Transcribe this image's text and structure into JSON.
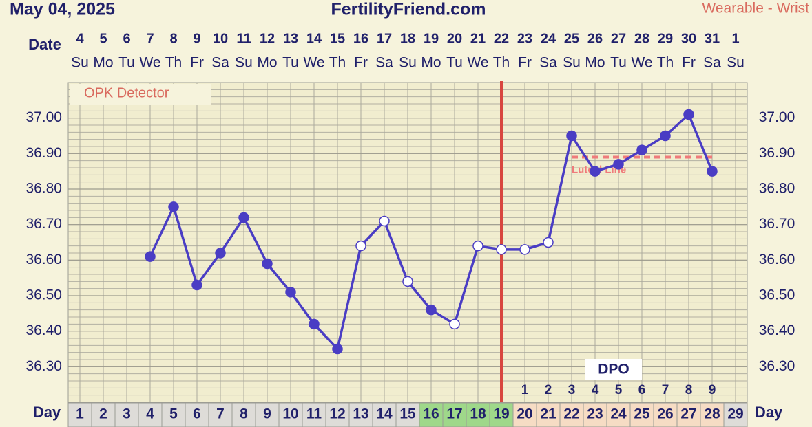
{
  "header": {
    "date": "May 04, 2025",
    "site": "FertilityFriend.com",
    "source": "Wearable - Wrist"
  },
  "chart_data": {
    "type": "line",
    "date_label": "Date",
    "dates": [
      4,
      5,
      6,
      7,
      8,
      9,
      10,
      11,
      12,
      13,
      14,
      15,
      16,
      17,
      18,
      19,
      20,
      21,
      22,
      23,
      24,
      25,
      26,
      27,
      28,
      29,
      30,
      31,
      1
    ],
    "weekdays": [
      "Su",
      "Mo",
      "Tu",
      "We",
      "Th",
      "Fr",
      "Sa",
      "Su",
      "Mo",
      "Tu",
      "We",
      "Th",
      "Fr",
      "Sa",
      "Su",
      "Mo",
      "Tu",
      "We",
      "Th",
      "Fr",
      "Sa",
      "Su",
      "Mo",
      "Tu",
      "We",
      "Th",
      "Fr",
      "Sa",
      "Su"
    ],
    "day_label": "Day",
    "categories": [
      1,
      2,
      3,
      4,
      5,
      6,
      7,
      8,
      9,
      10,
      11,
      12,
      13,
      14,
      15,
      16,
      17,
      18,
      19,
      20,
      21,
      22,
      23,
      24,
      25,
      26,
      27,
      28,
      29
    ],
    "dpo_label": "DPO",
    "dpo": [
      null,
      null,
      null,
      null,
      null,
      null,
      null,
      null,
      null,
      null,
      null,
      null,
      null,
      null,
      null,
      null,
      null,
      null,
      null,
      1,
      2,
      3,
      4,
      5,
      6,
      7,
      8,
      9,
      null
    ],
    "fertile_days": [
      16,
      17,
      18,
      19
    ],
    "ovulation_day": 19,
    "opk_label": "OPK Detector",
    "luteal_line": {
      "label": "Luteal Line",
      "value": 36.89,
      "start_day": 22,
      "end_day": 28,
      "color": "#ef7b7b"
    },
    "series": [
      {
        "name": "Temperature",
        "color": "#4a3dc4",
        "values": [
          null,
          null,
          null,
          36.61,
          36.75,
          36.53,
          36.62,
          36.72,
          36.59,
          36.51,
          36.42,
          36.35,
          36.64,
          36.71,
          36.54,
          36.46,
          36.42,
          36.64,
          36.63,
          36.63,
          36.65,
          36.95,
          36.85,
          36.87,
          36.91,
          36.95,
          37.01,
          36.85,
          null
        ],
        "open": [
          false,
          false,
          false,
          false,
          false,
          false,
          false,
          false,
          false,
          false,
          false,
          false,
          true,
          true,
          true,
          false,
          true,
          true,
          true,
          true,
          true,
          false,
          false,
          false,
          false,
          false,
          false,
          false,
          false
        ]
      }
    ],
    "ylim": [
      36.2,
      37.1
    ],
    "yticks": [
      {
        "value": 36.3,
        "label": "36.30"
      },
      {
        "value": 36.4,
        "label": "36.40"
      },
      {
        "value": 36.5,
        "label": "36.50"
      },
      {
        "value": 36.6,
        "label": "36.60"
      },
      {
        "value": 36.7,
        "label": "36.70"
      },
      {
        "value": 36.8,
        "label": "36.80"
      },
      {
        "value": 36.9,
        "label": "36.90"
      },
      {
        "value": 37.0,
        "label": "37.00"
      }
    ],
    "grid": true
  }
}
